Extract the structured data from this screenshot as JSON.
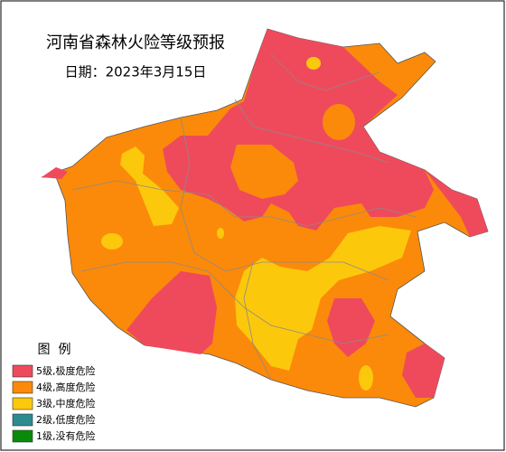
{
  "title": "河南省森林火险等级预报",
  "date": "日期：2023年3月15日",
  "legend": {
    "title": "图  例",
    "items": [
      {
        "label": "5级,极度危险",
        "color": "#ef4a5c"
      },
      {
        "label": "4级,高度危险",
        "color": "#fb8a0a"
      },
      {
        "label": "3级,中度危险",
        "color": "#fcc80c"
      },
      {
        "label": "2级,低度危险",
        "color": "#2b8b8f"
      },
      {
        "label": "1级,没有危险",
        "color": "#0a8a0a"
      }
    ]
  }
}
